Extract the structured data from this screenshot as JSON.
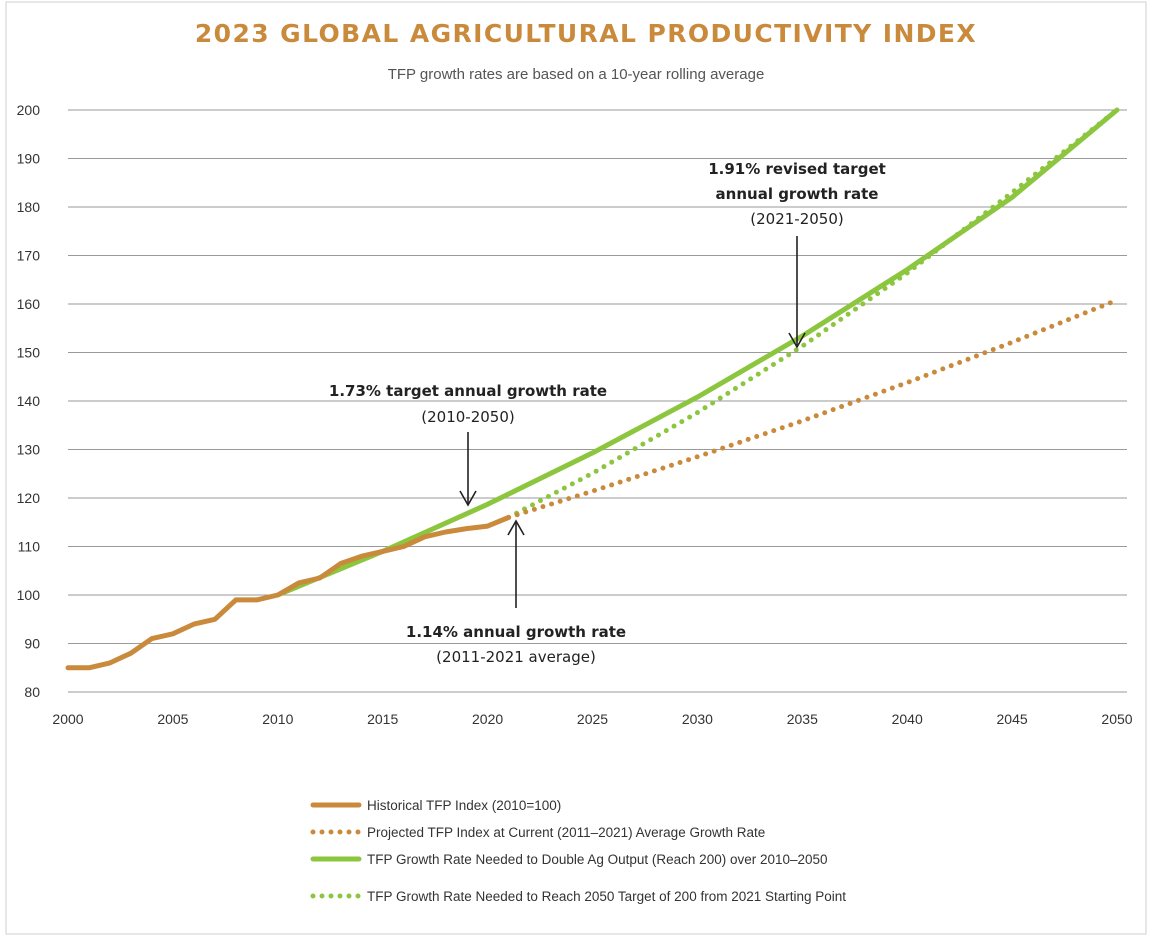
{
  "chart_data": {
    "type": "line",
    "title": "2023 GLOBAL AGRICULTURAL PRODUCTIVITY INDEX",
    "subtitle": "TFP growth rates are based on a 10-year rolling average",
    "xlabel": "",
    "ylabel": "",
    "xlim": [
      2000,
      2050
    ],
    "ylim": [
      80,
      200
    ],
    "x_ticks": [
      2000,
      2005,
      2010,
      2015,
      2020,
      2025,
      2030,
      2035,
      2040,
      2045,
      2050
    ],
    "y_ticks": [
      80,
      90,
      100,
      110,
      120,
      130,
      140,
      150,
      160,
      170,
      180,
      190,
      200
    ],
    "grid": "horizontal",
    "legend_position": "bottom",
    "colors": {
      "orange": "#c98a3c",
      "green": "#8cc63f"
    },
    "series": [
      {
        "name": "Historical TFP Index (2010=100)",
        "style": "solid",
        "color": "#c98a3c",
        "x": [
          2000,
          2001,
          2002,
          2003,
          2004,
          2005,
          2006,
          2007,
          2008,
          2009,
          2010,
          2011,
          2012,
          2013,
          2014,
          2015,
          2016,
          2017,
          2018,
          2019,
          2020,
          2021
        ],
        "y": [
          85,
          85,
          86,
          88,
          91,
          92,
          94,
          95,
          99,
          99,
          100,
          102.5,
          103.5,
          106.5,
          108,
          109,
          110,
          112,
          113,
          113.7,
          114.2,
          116
        ]
      },
      {
        "name": "Projected TFP Index at Current (2011–2021) Average Growth Rate",
        "style": "dotted",
        "color": "#c98a3c",
        "x": [
          2021,
          2025,
          2030,
          2035,
          2040,
          2045,
          2050
        ],
        "y": [
          116,
          121.4,
          128.5,
          135.9,
          143.8,
          152.1,
          160.8
        ]
      },
      {
        "name": "TFP Growth Rate Needed to Double Ag Output (Reach 200) over 2010–2050",
        "style": "solid",
        "color": "#8cc63f",
        "x": [
          2010,
          2015,
          2020,
          2025,
          2030,
          2035,
          2040,
          2045,
          2050
        ],
        "y": [
          100,
          109,
          118.7,
          129.3,
          140.8,
          153.4,
          167.1,
          182,
          200
        ]
      },
      {
        "name": "TFP Growth Rate Needed to Reach 2050 Target of 200 from 2021 Starting Point",
        "style": "dotted",
        "color": "#8cc63f",
        "x": [
          2021,
          2025,
          2030,
          2035,
          2040,
          2045,
          2050
        ],
        "y": [
          116,
          125.1,
          137.6,
          151.3,
          166.4,
          183,
          200
        ]
      }
    ],
    "annotations": [
      {
        "line1": "1.91% revised target",
        "line2": "annual growth rate",
        "line3": "(2021-2050)",
        "arrow_to": {
          "x": 2035,
          "y": 151
        }
      },
      {
        "line1": "1.73% target annual growth rate",
        "line2": "(2010-2050)",
        "arrow_to": {
          "x": 2019,
          "y": 119
        }
      },
      {
        "line1": "1.14% annual growth rate",
        "line2": "(2011-2021 average)",
        "arrow_to": {
          "x": 2021.5,
          "y": 116
        }
      }
    ]
  }
}
